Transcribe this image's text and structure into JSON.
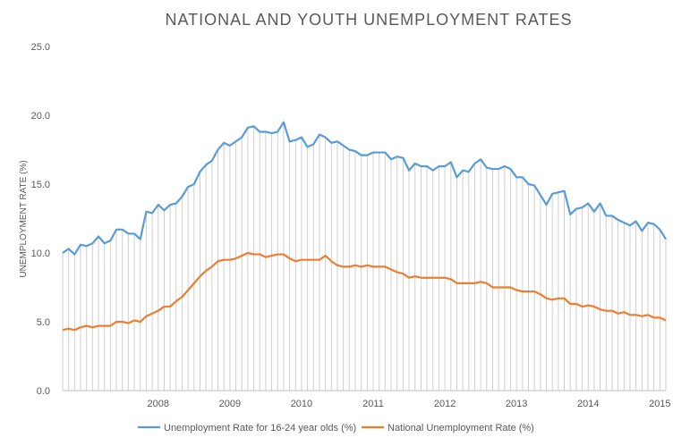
{
  "chart_data": {
    "type": "line",
    "title": "NATIONAL AND YOUTH UNEMPLOYMENT RATES",
    "xlabel": "",
    "ylabel": "UNEMPLOYMENT RATE (%)",
    "ylim": [
      0,
      25
    ],
    "yticks": [
      "0.0",
      "5.0",
      "10.0",
      "15.0",
      "20.0",
      "25.0"
    ],
    "xticks": [
      "2008",
      "2009",
      "2010",
      "2011",
      "2012",
      "2013",
      "2014",
      "2015"
    ],
    "x_start": "2007-03",
    "x_end": "2015-08",
    "grid": "vertical drop lines",
    "legend": "bottom",
    "series": [
      {
        "name": "Unemployment Rate for 16-24 year olds (%)",
        "color": "#5b9bd5",
        "values": [
          10.0,
          10.3,
          9.9,
          10.6,
          10.5,
          10.7,
          11.2,
          10.7,
          10.9,
          11.7,
          11.7,
          11.4,
          11.4,
          11.0,
          13.0,
          12.9,
          13.5,
          13.1,
          13.5,
          13.6,
          14.1,
          14.8,
          15.0,
          15.9,
          16.4,
          16.7,
          17.5,
          18.0,
          17.8,
          18.1,
          18.4,
          19.1,
          19.2,
          18.8,
          18.8,
          18.7,
          18.8,
          19.5,
          18.1,
          18.2,
          18.4,
          17.7,
          17.9,
          18.6,
          18.4,
          18.0,
          18.1,
          17.8,
          17.5,
          17.4,
          17.1,
          17.1,
          17.3,
          17.3,
          17.3,
          16.8,
          17.0,
          16.9,
          16.0,
          16.5,
          16.3,
          16.3,
          16.0,
          16.3,
          16.3,
          16.6,
          15.5,
          16.0,
          15.9,
          16.5,
          16.8,
          16.2,
          16.1,
          16.1,
          16.3,
          16.1,
          15.5,
          15.5,
          15.0,
          14.9,
          14.2,
          13.5,
          14.3,
          14.4,
          14.5,
          12.8,
          13.2,
          13.3,
          13.6,
          13.0,
          13.6,
          12.7,
          12.7,
          12.4,
          12.2,
          12.0,
          12.3,
          11.6,
          12.2,
          12.1,
          11.7,
          11.0
        ]
      },
      {
        "name": "National Unemployment Rate (%)",
        "color": "#ed7d31",
        "values": [
          4.4,
          4.5,
          4.4,
          4.6,
          4.7,
          4.6,
          4.7,
          4.7,
          4.7,
          5.0,
          5.0,
          4.9,
          5.1,
          5.0,
          5.4,
          5.6,
          5.8,
          6.1,
          6.1,
          6.5,
          6.8,
          7.3,
          7.8,
          8.3,
          8.7,
          9.0,
          9.4,
          9.5,
          9.5,
          9.6,
          9.8,
          10.0,
          9.9,
          9.9,
          9.7,
          9.8,
          9.9,
          9.9,
          9.6,
          9.4,
          9.5,
          9.5,
          9.5,
          9.5,
          9.8,
          9.4,
          9.1,
          9.0,
          9.0,
          9.1,
          9.0,
          9.1,
          9.0,
          9.0,
          9.0,
          8.8,
          8.6,
          8.5,
          8.2,
          8.3,
          8.2,
          8.2,
          8.2,
          8.2,
          8.2,
          8.1,
          7.8,
          7.8,
          7.8,
          7.8,
          7.9,
          7.8,
          7.5,
          7.5,
          7.5,
          7.5,
          7.3,
          7.2,
          7.2,
          7.2,
          7.0,
          6.7,
          6.6,
          6.7,
          6.7,
          6.3,
          6.3,
          6.1,
          6.2,
          6.1,
          5.9,
          5.8,
          5.8,
          5.6,
          5.7,
          5.5,
          5.5,
          5.4,
          5.5,
          5.3,
          5.3,
          5.1
        ]
      }
    ]
  }
}
